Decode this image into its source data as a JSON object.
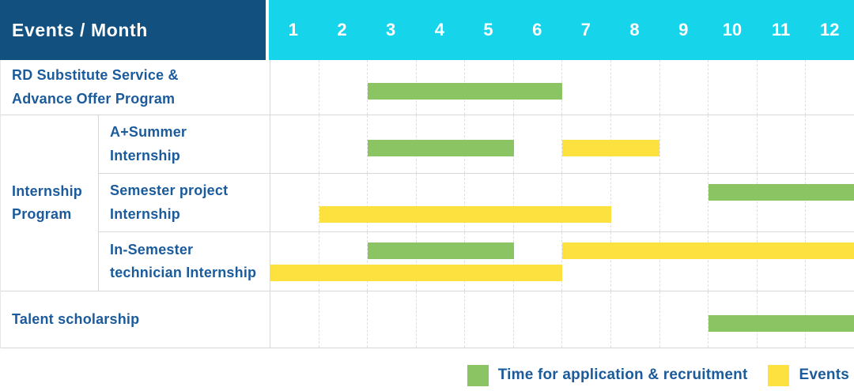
{
  "header": {
    "title": "Events / Month",
    "months": [
      "1",
      "2",
      "3",
      "4",
      "5",
      "6",
      "7",
      "8",
      "9",
      "10",
      "11",
      "12"
    ]
  },
  "group": {
    "label": "Internship\nProgram"
  },
  "rows": [
    {
      "id": "rd-substitute-service",
      "label": "RD Substitute Service &\nAdvance Offer Program",
      "in_group": false,
      "bars": [
        {
          "type": "recruitment",
          "start": 3,
          "end": 6,
          "lane": "mid"
        }
      ]
    },
    {
      "id": "a-plus-summer-internship",
      "label": "A+Summer\nInternship",
      "in_group": true,
      "bars": [
        {
          "type": "recruitment",
          "start": 3,
          "end": 5,
          "lane": "mid"
        },
        {
          "type": "events",
          "start": 7,
          "end": 8,
          "lane": "mid"
        }
      ]
    },
    {
      "id": "semester-project-internship",
      "label": "Semester project\nInternship",
      "in_group": true,
      "bars": [
        {
          "type": "recruitment",
          "start": 10,
          "end": 12,
          "lane": "top"
        },
        {
          "type": "events",
          "start": 2,
          "end": 7,
          "lane": "bottom"
        }
      ]
    },
    {
      "id": "in-semester-technician-internship",
      "label": "In-Semester\ntechnician Internship",
      "in_group": true,
      "bars": [
        {
          "type": "recruitment",
          "start": 3,
          "end": 5,
          "lane": "top"
        },
        {
          "type": "events",
          "start": 7,
          "end": 12,
          "lane": "top"
        },
        {
          "type": "events",
          "start": 1,
          "end": 6,
          "lane": "bottom"
        }
      ]
    },
    {
      "id": "talent-scholarship",
      "label": "Talent scholarship",
      "in_group": false,
      "bars": [
        {
          "type": "recruitment",
          "start": 10,
          "end": 12,
          "lane": "mid"
        }
      ]
    }
  ],
  "legend": [
    {
      "type": "recruitment",
      "label": "Time for application & recruitment",
      "color": "#8bc563"
    },
    {
      "type": "events",
      "label": "Events",
      "color": "#fde23f"
    }
  ],
  "colors": {
    "recruitment": "#8bc563",
    "events": "#fde23f",
    "header_blue": "#11507f",
    "header_cyan": "#16d4ea",
    "label_text": "#1b5b9b",
    "grid_line": "#d8d8d8"
  },
  "chart_data": {
    "type": "table",
    "title": "Events / Month",
    "x": [
      1,
      2,
      3,
      4,
      5,
      6,
      7,
      8,
      9,
      10,
      11,
      12
    ],
    "xlabel": "Month",
    "legend_position": "bottom-right",
    "grid": true,
    "series": [
      {
        "name": "RD Substitute Service & Advance Offer Program",
        "group": null,
        "spans": [
          {
            "kind": "Time for application & recruitment",
            "start_month": 3,
            "end_month": 6
          }
        ]
      },
      {
        "name": "A+Summer Internship",
        "group": "Internship Program",
        "spans": [
          {
            "kind": "Time for application & recruitment",
            "start_month": 3,
            "end_month": 5
          },
          {
            "kind": "Events",
            "start_month": 7,
            "end_month": 8
          }
        ]
      },
      {
        "name": "Semester project Internship",
        "group": "Internship Program",
        "spans": [
          {
            "kind": "Time for application & recruitment",
            "start_month": 10,
            "end_month": 12
          },
          {
            "kind": "Events",
            "start_month": 2,
            "end_month": 7
          }
        ]
      },
      {
        "name": "In-Semester technician Internship",
        "group": "Internship Program",
        "spans": [
          {
            "kind": "Time for application & recruitment",
            "start_month": 3,
            "end_month": 5
          },
          {
            "kind": "Events",
            "start_month": 7,
            "end_month": 12
          },
          {
            "kind": "Events",
            "start_month": 1,
            "end_month": 6
          }
        ]
      },
      {
        "name": "Talent scholarship",
        "group": null,
        "spans": [
          {
            "kind": "Time for application & recruitment",
            "start_month": 10,
            "end_month": 12
          }
        ]
      }
    ]
  }
}
